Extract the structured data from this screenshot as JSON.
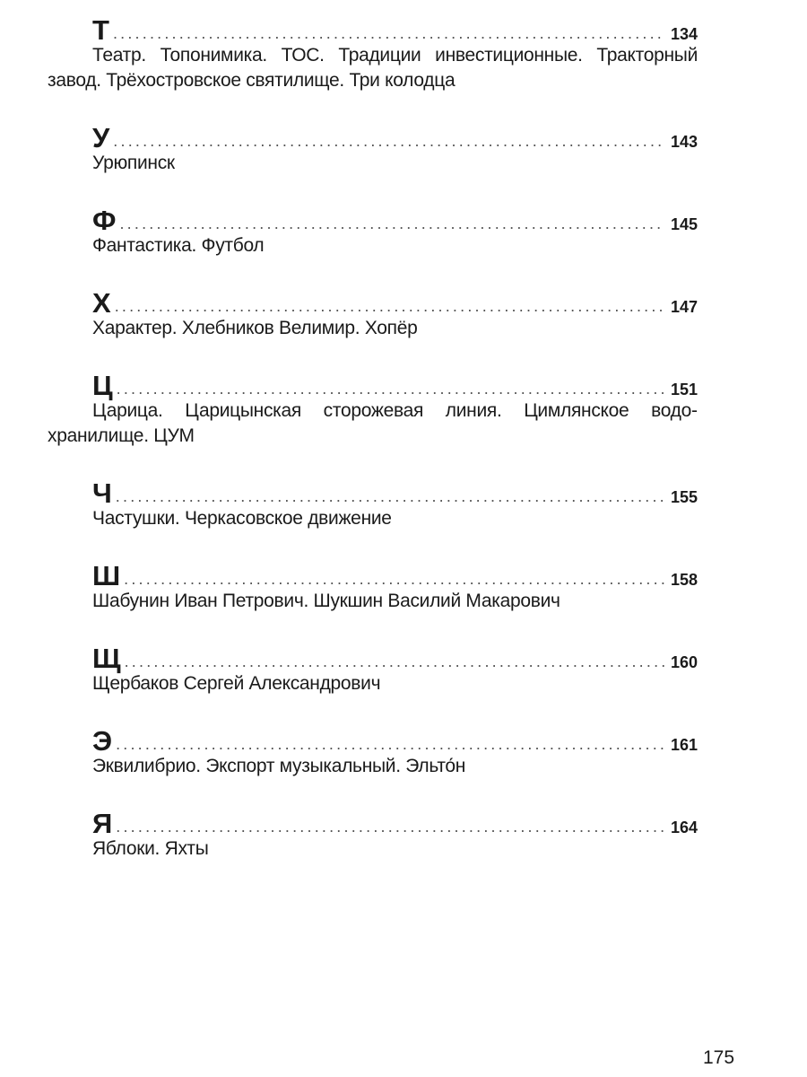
{
  "entries": [
    {
      "letter": "Т",
      "page": "134",
      "text": "Театр. Топонимика. ТОС. Традиции инвестиционные. Тракторный завод. Трёхостровское святилище. Три колодца"
    },
    {
      "letter": "У",
      "page": "143",
      "text": "Урюпинск"
    },
    {
      "letter": "Ф",
      "page": "145",
      "text": "Фантастика. Футбол"
    },
    {
      "letter": "Х",
      "page": "147",
      "text": "Характер. Хлебников Велимир. Хопёр"
    },
    {
      "letter": "Ц",
      "page": "151",
      "text": "Царица. Царицынская сторожевая линия. Цимлянское водо­хранилище. ЦУМ"
    },
    {
      "letter": "Ч",
      "page": "155",
      "text": "Частушки. Черкасовское движение"
    },
    {
      "letter": "Ш",
      "page": "158",
      "text": "Шабунин Иван Петрович. Шукшин Василий Макарович"
    },
    {
      "letter": "Щ",
      "page": "160",
      "text": "Щербаков Сергей Александрович"
    },
    {
      "letter": "Э",
      "page": "161",
      "text": "Эквилибрио. Экспорт музыкальный. Эльто́н"
    },
    {
      "letter": "Я",
      "page": "164",
      "text": "Яблоки. Яхты"
    }
  ],
  "page_number": "175"
}
